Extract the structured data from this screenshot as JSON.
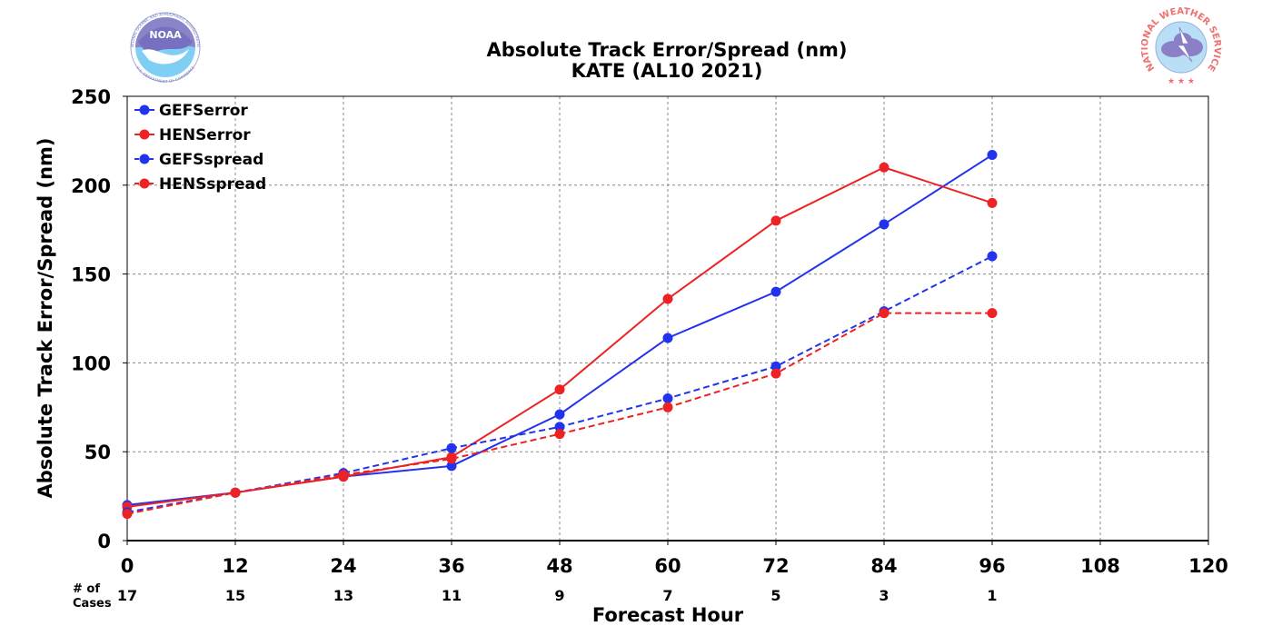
{
  "chart_data": {
    "type": "line",
    "title": "Absolute Track Error/Spread (nm)",
    "subtitle": "KATE (AL10 2021)",
    "xlabel": "Forecast Hour",
    "ylabel": "Absolute Track Error/Spread (nm)",
    "xlim": [
      0,
      120
    ],
    "ylim": [
      0,
      250
    ],
    "xticks": [
      0,
      12,
      24,
      36,
      48,
      60,
      72,
      84,
      96,
      108,
      120
    ],
    "yticks": [
      0,
      50,
      100,
      150,
      200,
      250
    ],
    "grid": true,
    "legend_position": "top-left",
    "x": [
      0,
      12,
      24,
      36,
      48,
      60,
      72,
      84,
      96
    ],
    "series": [
      {
        "name": "GEFSerror",
        "color": "#2233ee",
        "style": "solid",
        "values": [
          20,
          27,
          36,
          42,
          71,
          114,
          140,
          178,
          217
        ]
      },
      {
        "name": "HENSerror",
        "color": "#ee2222",
        "style": "solid",
        "values": [
          19,
          27,
          36,
          47,
          85,
          136,
          180,
          210,
          190
        ]
      },
      {
        "name": "GEFSspread",
        "color": "#2233ee",
        "style": "dashed",
        "values": [
          16,
          27,
          38,
          52,
          64,
          80,
          98,
          129,
          160
        ]
      },
      {
        "name": "HENSspread",
        "color": "#ee2222",
        "style": "dashed",
        "values": [
          15,
          27,
          37,
          46,
          60,
          75,
          94,
          128,
          128
        ]
      }
    ],
    "cases": {
      "label_line1": "# of",
      "label_line2": "Cases",
      "x": [
        0,
        12,
        24,
        36,
        48,
        60,
        72,
        84,
        96
      ],
      "counts": [
        "17",
        "15",
        "13",
        "11",
        "9",
        "7",
        "5",
        "3",
        "1"
      ]
    }
  },
  "logos": {
    "left": {
      "name": "noaa-logo",
      "text": "NOAA",
      "ring_text": "NATIONAL OCEANIC AND ATMOSPHERIC ADMINISTRATION",
      "ring_text_bottom": "U.S. DEPARTMENT OF COMMERCE"
    },
    "right": {
      "name": "nws-logo",
      "ring_text": "NATIONAL WEATHER SERVICE"
    }
  }
}
